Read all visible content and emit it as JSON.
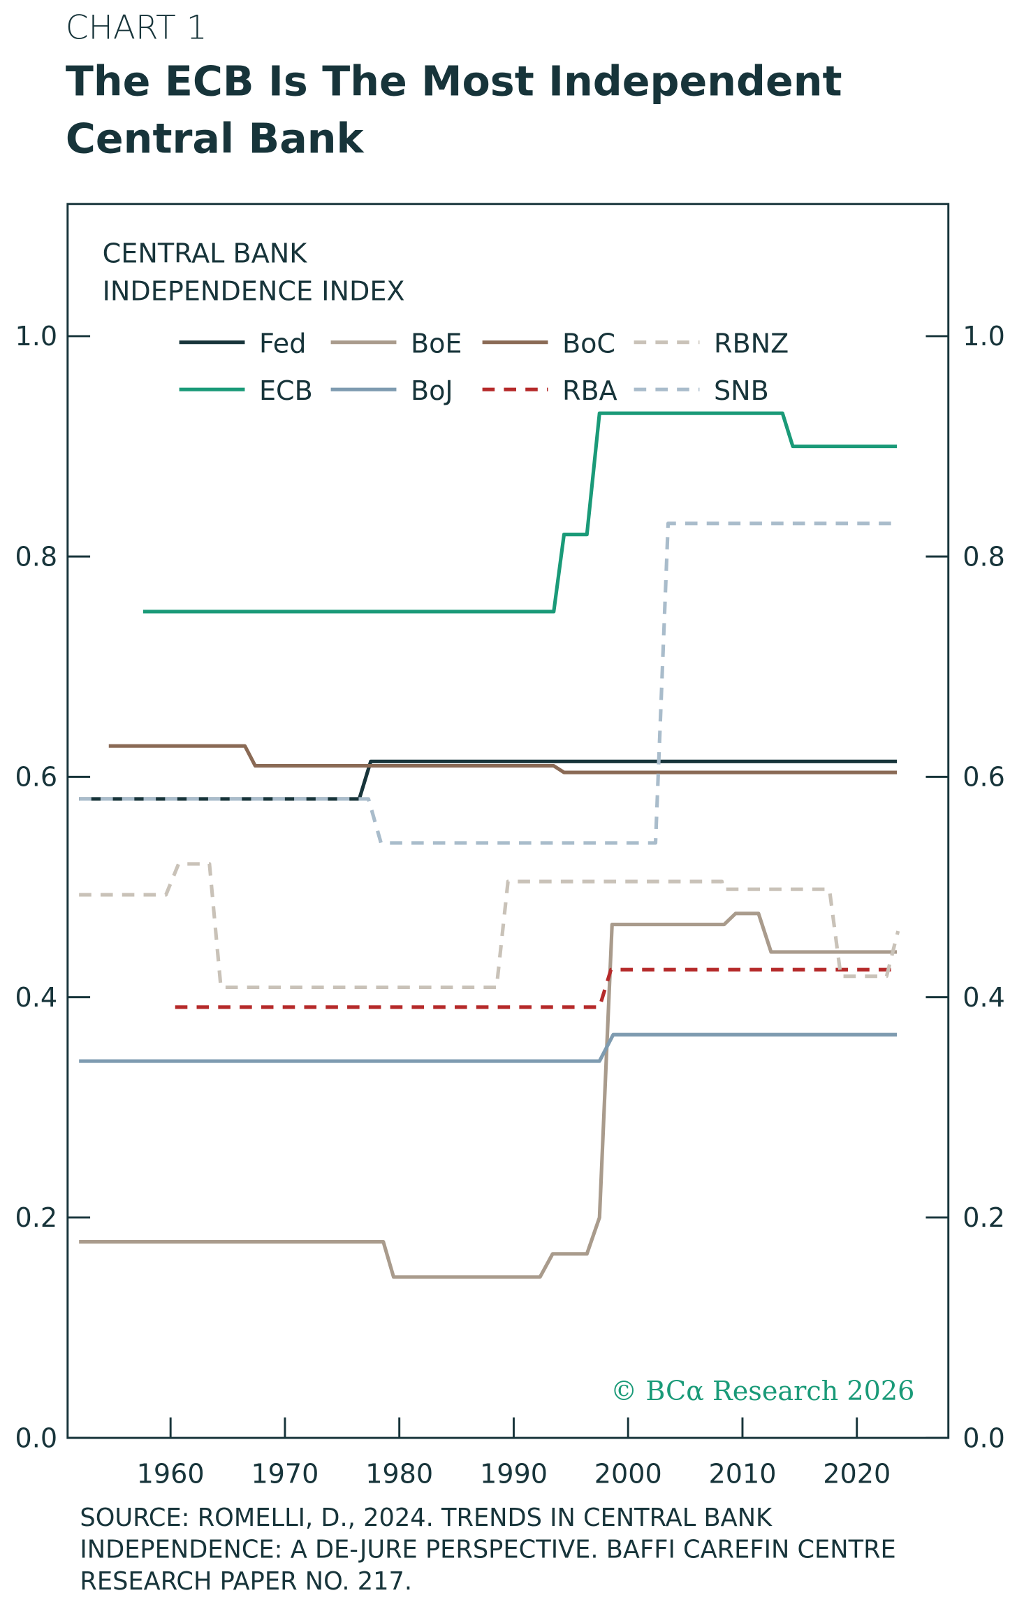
{
  "chart_data": {
    "type": "line",
    "kicker": "CHART 1",
    "title": "The ECB Is The Most Independent Central Bank",
    "y_label": "CENTRAL BANK INDEPENDENCE INDEX",
    "watermark": "© BCα Research 2026",
    "source": "SOURCE: ROMELLI, D., 2024. TRENDS IN CENTRAL BANK INDEPENDENCE: A DE-JURE PERSPECTIVE. BAFFI CAREFIN CENTRE RESEARCH PAPER NO. 217.",
    "xlim": [
      1951,
      2028
    ],
    "xticks": [
      1960,
      1970,
      1980,
      1990,
      2000,
      2010,
      2020
    ],
    "ylim": [
      0,
      1.12
    ],
    "yticks": [
      {
        "value": 0,
        "label": "0.0"
      },
      0.2,
      0.4,
      0.6,
      0.8,
      {
        "value": 1,
        "label": "1.0"
      }
    ],
    "series": [
      {
        "name": "Fed",
        "color": "#17343a",
        "dash": false,
        "x": [
          1952,
          1976.5,
          1977.5,
          2023.5
        ],
        "values": [
          0.58,
          0.58,
          0.614,
          0.614
        ]
      },
      {
        "name": "ECB",
        "color": "#1a9a78",
        "dash": false,
        "x": [
          1957.6,
          1993.5,
          1994.4,
          1996.4,
          1997.5,
          2013.5,
          2014.4,
          2023.5
        ],
        "values": [
          0.75,
          0.75,
          0.82,
          0.82,
          0.93,
          0.93,
          0.9,
          0.9
        ]
      },
      {
        "name": "BoE",
        "color": "#a99b8c",
        "dash": false,
        "x": [
          1952,
          1978.6,
          1979.5,
          1992.3,
          1993.4,
          1996.4,
          1997.5,
          1998.6,
          2008.4,
          2009.4,
          2011.4,
          2012.5,
          2023.5
        ],
        "values": [
          0.178,
          0.178,
          0.146,
          0.146,
          0.167,
          0.167,
          0.2,
          0.466,
          0.466,
          0.476,
          0.476,
          0.441,
          0.441
        ]
      },
      {
        "name": "BoJ",
        "color": "#7e9bb0",
        "dash": false,
        "x": [
          1952,
          1997.5,
          1998.7,
          2023.5
        ],
        "values": [
          0.342,
          0.342,
          0.366,
          0.366
        ]
      },
      {
        "name": "BoC",
        "color": "#8a6a55",
        "dash": false,
        "x": [
          1954.6,
          1966.5,
          1967.4,
          1993.5,
          1994.4,
          2023.5
        ],
        "values": [
          0.628,
          0.628,
          0.61,
          0.61,
          0.604,
          0.604
        ]
      },
      {
        "name": "RBA",
        "color": "#b52a2a",
        "dash": true,
        "x": [
          1960.4,
          1997.5,
          1998.5,
          2023.5
        ],
        "values": [
          0.391,
          0.391,
          0.425,
          0.425
        ]
      },
      {
        "name": "RBNZ",
        "color": "#c9c2b8",
        "dash": true,
        "x": [
          1952,
          1959.6,
          1960.7,
          1963.4,
          1964.4,
          1988.5,
          1989.5,
          2008.2,
          2008.3,
          2017.6,
          2018.6,
          2022.6,
          2023.6
        ],
        "values": [
          0.493,
          0.493,
          0.521,
          0.521,
          0.409,
          0.409,
          0.505,
          0.505,
          0.498,
          0.498,
          0.419,
          0.419,
          0.46
        ]
      },
      {
        "name": "SNB",
        "color": "#a9bccb",
        "dash": true,
        "x": [
          1952,
          1977.3,
          1978.4,
          2002.4,
          2003.5,
          2023.5
        ],
        "values": [
          0.58,
          0.58,
          0.54,
          0.54,
          0.83,
          0.83
        ]
      }
    ]
  }
}
